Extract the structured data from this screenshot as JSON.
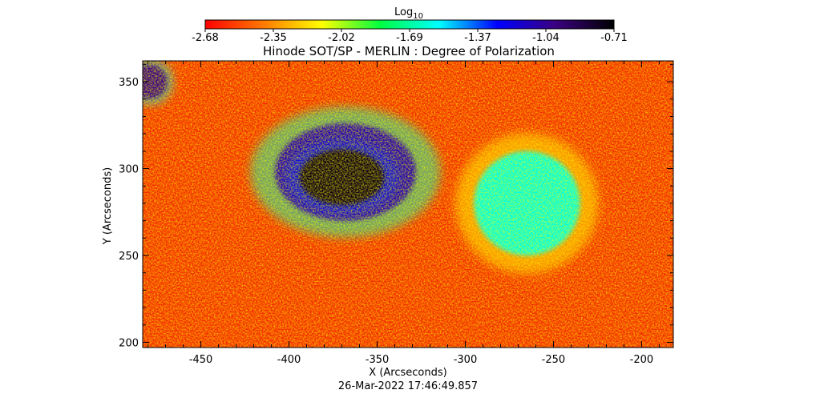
{
  "chart_data": {
    "type": "heatmap",
    "title": "Hinode SOT/SP - MERLIN : Degree of Polarization",
    "xlabel": "X (Arcseconds)",
    "ylabel": "Y (Arcseconds)",
    "timestamp": "26-Mar-2022 17:46:49.857",
    "xlim": [
      -483,
      -182
    ],
    "ylim": [
      197,
      362
    ],
    "x_ticks": [
      -450,
      -400,
      -350,
      -300,
      -250,
      -200
    ],
    "y_ticks": [
      200,
      250,
      300,
      350
    ],
    "colorbar": {
      "label_base": "Log",
      "label_sub": "10",
      "range": [
        -2.68,
        -0.71
      ],
      "ticks": [
        "-2.68",
        "-2.35",
        "-2.02",
        "-1.69",
        "-1.37",
        "-1.04",
        "-0.71"
      ],
      "colormap": [
        "#ff0000",
        "#ff7a00",
        "#ffff00",
        "#00ff40",
        "#00ffff",
        "#0000ff",
        "#3a0080",
        "#000000"
      ]
    },
    "features": [
      {
        "name": "sunspot",
        "x": -370,
        "y": 295,
        "rx": 24,
        "ry": 16,
        "value": -0.75
      },
      {
        "name": "penumbra",
        "x": -368,
        "y": 298,
        "rx": 40,
        "ry": 28,
        "value": -1.1
      },
      {
        "name": "plage-corner",
        "x": -479,
        "y": 350,
        "rx": 10,
        "ry": 10,
        "value": -1.0
      },
      {
        "name": "network-right",
        "x": -265,
        "y": 280,
        "rx": 30,
        "ry": 30,
        "value": -1.6
      }
    ]
  }
}
